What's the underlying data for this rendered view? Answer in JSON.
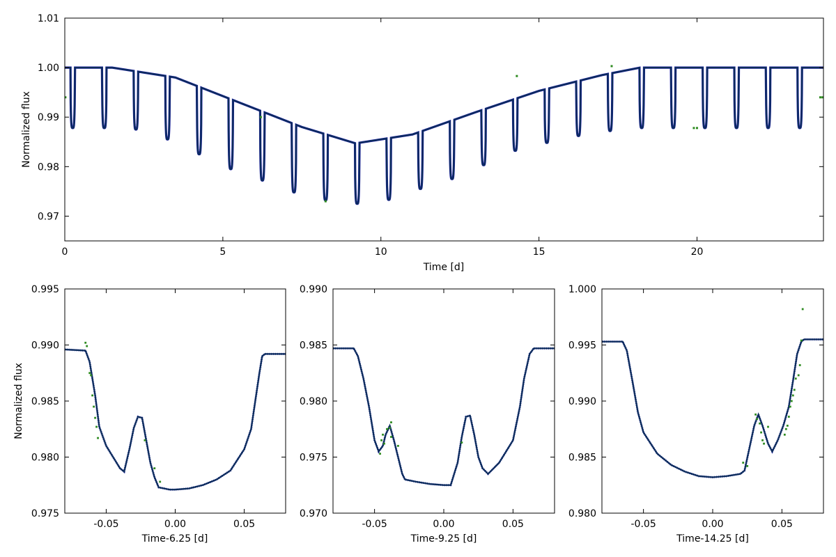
{
  "chart_data": [
    {
      "id": "main",
      "type": "line",
      "title": "",
      "xlabel": "Time [d]",
      "ylabel": "Normalized flux",
      "xlim": [
        0,
        24
      ],
      "ylim": [
        0.965,
        1.01
      ],
      "xticks": [
        0,
        5,
        10,
        15,
        20
      ],
      "xtick_labels": [
        "0",
        "5",
        "10",
        "15",
        "20"
      ],
      "yticks": [
        0.97,
        0.98,
        0.99,
        1.0,
        1.01
      ],
      "ytick_labels": [
        "0.97",
        "0.98",
        "0.99",
        "1.00",
        "1.01"
      ],
      "baseline": {
        "x": [
          0,
          1.5,
          3.5,
          5.5,
          7.5,
          9.2,
          11,
          13,
          15,
          17,
          18.2,
          24
        ],
        "y": [
          1.0,
          1.0,
          0.998,
          0.993,
          0.988,
          0.9847,
          0.9865,
          0.991,
          0.9953,
          0.9985,
          1.0,
          1.0
        ]
      },
      "transit_times": [
        0.25,
        1.25,
        2.25,
        3.25,
        4.25,
        5.25,
        6.25,
        7.25,
        8.25,
        9.25,
        10.25,
        11.25,
        12.25,
        13.25,
        14.25,
        15.25,
        16.25,
        17.25,
        18.25,
        19.25,
        20.25,
        21.25,
        22.25,
        23.25
      ],
      "transit_minimum_flux": [
        0.9878,
        0.9878,
        0.9875,
        0.9855,
        0.9825,
        0.9795,
        0.9772,
        0.9748,
        0.9732,
        0.9725,
        0.9733,
        0.9755,
        0.9775,
        0.9803,
        0.9832,
        0.9848,
        0.9862,
        0.9872,
        0.9878,
        0.9878,
        0.9878,
        0.9878,
        0.9878,
        0.9878
      ],
      "transit_half_width": 0.07,
      "outlier_points": [
        {
          "x": 0.02,
          "y": 0.994
        },
        {
          "x": 6.2,
          "y": 0.99
        },
        {
          "x": 8.25,
          "y": 0.973
        },
        {
          "x": 14.3,
          "y": 0.9983
        },
        {
          "x": 17.3,
          "y": 1.0003
        },
        {
          "x": 19.9,
          "y": 0.9878
        },
        {
          "x": 20.0,
          "y": 0.9878
        },
        {
          "x": 23.9,
          "y": 0.994
        },
        {
          "x": 23.97,
          "y": 0.994
        }
      ],
      "colors": {
        "model": "#0c2d5a",
        "data": "#1a1aa8",
        "outlier": "#2e8b20"
      }
    },
    {
      "id": "zoom-1",
      "type": "line",
      "title": "",
      "xlabel": "Time-6.25 [d]",
      "ylabel": "Normalized flux",
      "xlim": [
        -0.08,
        0.08
      ],
      "ylim": [
        0.975,
        0.995
      ],
      "xticks": [
        -0.05,
        0.0,
        0.05
      ],
      "xtick_labels": [
        "-0.05",
        "0.00",
        "0.05"
      ],
      "yticks": [
        0.975,
        0.98,
        0.985,
        0.99,
        0.995
      ],
      "ytick_labels": [
        "0.975",
        "0.980",
        "0.985",
        "0.990",
        "0.995"
      ],
      "model": {
        "x": [
          -0.08,
          -0.065,
          -0.062,
          -0.058,
          -0.055,
          -0.05,
          -0.045,
          -0.04,
          -0.037,
          -0.033,
          -0.03,
          -0.027,
          -0.024,
          -0.021,
          -0.018,
          -0.015,
          -0.012,
          -0.008,
          -0.004,
          0.0,
          0.01,
          0.02,
          0.03,
          0.04,
          0.05,
          0.055,
          0.058,
          0.061,
          0.063,
          0.065,
          0.08
        ],
        "y": [
          0.9896,
          0.9895,
          0.9885,
          0.9855,
          0.9827,
          0.981,
          0.98,
          0.979,
          0.9787,
          0.9808,
          0.9826,
          0.9836,
          0.9835,
          0.9815,
          0.9795,
          0.9782,
          0.9773,
          0.9772,
          0.9771,
          0.9771,
          0.9772,
          0.9775,
          0.978,
          0.9788,
          0.9807,
          0.9825,
          0.985,
          0.9875,
          0.989,
          0.9892,
          0.9892
        ]
      },
      "data_points": {
        "x": [
          -0.065,
          -0.064,
          -0.062,
          -0.061,
          -0.06,
          -0.059,
          -0.058,
          -0.057,
          -0.056,
          -0.022,
          -0.015,
          -0.011
        ],
        "y": [
          0.9902,
          0.9899,
          0.9875,
          0.9873,
          0.9855,
          0.9845,
          0.9835,
          0.9827,
          0.9817,
          0.9815,
          0.979,
          0.9778
        ]
      },
      "colors": {
        "model": "#0c2d5a",
        "data": "#1a1aa8",
        "outlier": "#2e8b20"
      }
    },
    {
      "id": "zoom-2",
      "type": "line",
      "title": "",
      "xlabel": "Time-9.25 [d]",
      "ylabel": "",
      "xlim": [
        -0.08,
        0.08
      ],
      "ylim": [
        0.97,
        0.99
      ],
      "xticks": [
        -0.05,
        0.0,
        0.05
      ],
      "xtick_labels": [
        "-0.05",
        "0.00",
        "0.05"
      ],
      "yticks": [
        0.97,
        0.975,
        0.98,
        0.985,
        0.99
      ],
      "ytick_labels": [
        "0.970",
        "0.975",
        "0.980",
        "0.985",
        "0.990"
      ],
      "model": {
        "x": [
          -0.08,
          -0.065,
          -0.062,
          -0.058,
          -0.054,
          -0.05,
          -0.047,
          -0.044,
          -0.042,
          -0.039,
          -0.036,
          -0.033,
          -0.03,
          -0.028,
          -0.02,
          -0.01,
          0.0,
          0.005,
          0.01,
          0.013,
          0.016,
          0.019,
          0.022,
          0.025,
          0.028,
          0.032,
          0.04,
          0.05,
          0.055,
          0.058,
          0.062,
          0.065,
          0.08
        ],
        "y": [
          0.9847,
          0.9847,
          0.984,
          0.982,
          0.9795,
          0.9765,
          0.9755,
          0.976,
          0.977,
          0.9778,
          0.9765,
          0.975,
          0.9735,
          0.973,
          0.9728,
          0.9726,
          0.9725,
          0.9725,
          0.9745,
          0.9768,
          0.9786,
          0.9787,
          0.977,
          0.975,
          0.974,
          0.9735,
          0.9745,
          0.9765,
          0.9795,
          0.982,
          0.9842,
          0.9847,
          0.9847
        ]
      },
      "data_points": {
        "x": [
          -0.046,
          -0.045,
          -0.044,
          -0.043,
          -0.041,
          -0.039,
          -0.038,
          -0.038,
          -0.033,
          0.013
        ],
        "y": [
          0.9753,
          0.9765,
          0.977,
          0.9762,
          0.9775,
          0.9776,
          0.9781,
          0.9768,
          0.976,
          0.9763
        ]
      },
      "colors": {
        "model": "#0c2d5a",
        "data": "#1a1aa8",
        "outlier": "#2e8b20"
      }
    },
    {
      "id": "zoom-3",
      "type": "line",
      "title": "",
      "xlabel": "Time-14.25 [d]",
      "ylabel": "",
      "xlim": [
        -0.08,
        0.08
      ],
      "ylim": [
        0.98,
        1.0
      ],
      "xticks": [
        -0.05,
        0.0,
        0.05
      ],
      "xtick_labels": [
        "-0.05",
        "0.00",
        "0.05"
      ],
      "yticks": [
        0.98,
        0.985,
        0.99,
        0.995,
        1.0
      ],
      "ytick_labels": [
        "0.980",
        "0.985",
        "0.990",
        "0.995",
        "1.000"
      ],
      "model": {
        "x": [
          -0.08,
          -0.065,
          -0.062,
          -0.058,
          -0.054,
          -0.05,
          -0.04,
          -0.03,
          -0.02,
          -0.01,
          0.0,
          0.01,
          0.02,
          0.023,
          0.026,
          0.03,
          0.033,
          0.036,
          0.04,
          0.043,
          0.047,
          0.051,
          0.055,
          0.058,
          0.061,
          0.064,
          0.066,
          0.08
        ],
        "y": [
          0.9953,
          0.9953,
          0.9945,
          0.9918,
          0.989,
          0.9872,
          0.9853,
          0.9843,
          0.9837,
          0.9833,
          0.9832,
          0.9833,
          0.9835,
          0.9838,
          0.9855,
          0.9878,
          0.9888,
          0.9878,
          0.9862,
          0.9855,
          0.9865,
          0.9878,
          0.9895,
          0.9918,
          0.9942,
          0.9953,
          0.9955,
          0.9955
        ]
      },
      "data_points": {
        "x": [
          0.022,
          0.025,
          0.031,
          0.032,
          0.034,
          0.035,
          0.036,
          0.037,
          0.04,
          0.052,
          0.053,
          0.054,
          0.055,
          0.056,
          0.057,
          0.058,
          0.059,
          0.06,
          0.062,
          0.063,
          0.064,
          0.065
        ],
        "y": [
          0.9845,
          0.9842,
          0.9888,
          0.9884,
          0.988,
          0.9872,
          0.9865,
          0.9862,
          0.9877,
          0.987,
          0.9875,
          0.9878,
          0.9886,
          0.9895,
          0.99,
          0.9905,
          0.991,
          0.992,
          0.9923,
          0.9932,
          0.9954,
          0.9982
        ]
      },
      "colors": {
        "model": "#0c2d5a",
        "data": "#1a1aa8",
        "outlier": "#2e8b20"
      }
    }
  ]
}
